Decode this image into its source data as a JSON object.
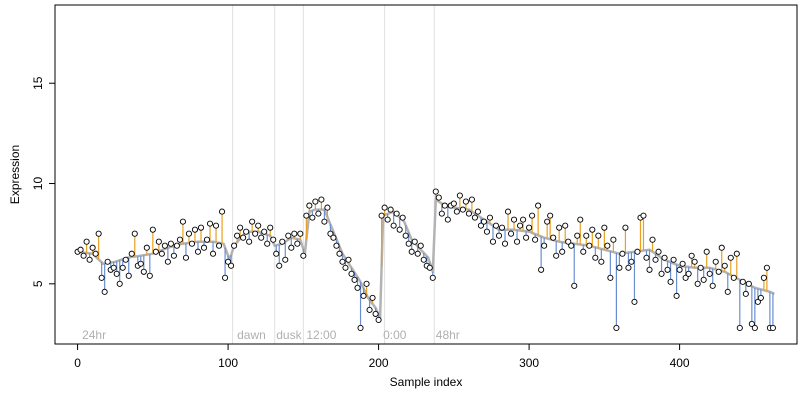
{
  "chart_data": {
    "type": "scatter",
    "xlabel": "Sample index",
    "ylabel": "Expression",
    "xlim": [
      -15,
      478
    ],
    "ylim": [
      2.0,
      18.9
    ],
    "x_ticks": [
      0,
      100,
      200,
      300,
      400
    ],
    "x_tick_labels": [
      "0",
      "100",
      "200",
      "300",
      "400"
    ],
    "y_ticks": [
      5,
      10,
      15
    ],
    "y_tick_labels": [
      "5",
      "10",
      "15"
    ],
    "markers": [
      {
        "x": 103,
        "label": ""
      },
      {
        "x": 131,
        "label": "dawn"
      },
      {
        "x": 150,
        "label": "dusk"
      },
      {
        "x": 204,
        "label": "12:00"
      },
      {
        "x": 237,
        "label": "0:00"
      }
    ],
    "segment_labels": [
      {
        "x": 3,
        "label": "24hr"
      },
      {
        "x": 106,
        "label": "dawn"
      },
      {
        "x": 132,
        "label": "dusk"
      },
      {
        "x": 152,
        "label": "12:00"
      },
      {
        "x": 203,
        "label": "0:00"
      },
      {
        "x": 238,
        "label": "48hr"
      }
    ],
    "fit_points": [
      [
        0,
        6.6
      ],
      [
        10,
        6.5
      ],
      [
        17,
        6.0
      ],
      [
        25,
        6.1
      ],
      [
        33,
        6.3
      ],
      [
        42,
        6.4
      ],
      [
        50,
        6.5
      ],
      [
        60,
        6.8
      ],
      [
        70,
        7.0
      ],
      [
        80,
        7.1
      ],
      [
        90,
        7.1
      ],
      [
        97,
        7.0
      ],
      [
        101,
        6.2
      ],
      [
        104,
        6.9
      ],
      [
        112,
        7.6
      ],
      [
        120,
        7.6
      ],
      [
        128,
        7.4
      ],
      [
        131,
        6.9
      ],
      [
        136,
        7.0
      ],
      [
        142,
        7.3
      ],
      [
        148,
        7.2
      ],
      [
        151,
        6.5
      ],
      [
        154,
        8.6
      ],
      [
        158,
        8.7
      ],
      [
        164,
        8.7
      ],
      [
        170,
        7.6
      ],
      [
        176,
        6.5
      ],
      [
        182,
        5.8
      ],
      [
        188,
        5.1
      ],
      [
        193,
        4.3
      ],
      [
        198,
        3.8
      ],
      [
        201,
        3.3
      ],
      [
        203,
        8.4
      ],
      [
        210,
        8.6
      ],
      [
        217,
        8.1
      ],
      [
        222,
        7.2
      ],
      [
        228,
        6.7
      ],
      [
        233,
        6.3
      ],
      [
        236,
        5.6
      ],
      [
        238,
        9.2
      ],
      [
        244,
        8.9
      ],
      [
        250,
        8.8
      ],
      [
        260,
        8.7
      ],
      [
        270,
        8.2
      ],
      [
        280,
        7.7
      ],
      [
        290,
        7.7
      ],
      [
        300,
        7.6
      ],
      [
        310,
        7.3
      ],
      [
        320,
        7.1
      ],
      [
        330,
        7.0
      ],
      [
        340,
        6.9
      ],
      [
        350,
        6.7
      ],
      [
        360,
        6.5
      ],
      [
        370,
        6.6
      ],
      [
        380,
        6.7
      ],
      [
        390,
        6.2
      ],
      [
        400,
        5.9
      ],
      [
        410,
        5.8
      ],
      [
        420,
        5.8
      ],
      [
        430,
        5.6
      ],
      [
        440,
        5.2
      ],
      [
        450,
        4.8
      ],
      [
        460,
        4.6
      ],
      [
        463,
        4.5
      ]
    ],
    "points": [
      [
        0,
        6.6
      ],
      [
        2,
        6.7
      ],
      [
        4,
        6.4
      ],
      [
        6,
        7.1
      ],
      [
        8,
        6.2
      ],
      [
        10,
        6.8
      ],
      [
        12,
        6.5
      ],
      [
        14,
        7.5
      ],
      [
        16,
        5.3
      ],
      [
        18,
        4.6
      ],
      [
        20,
        6.1
      ],
      [
        22,
        5.7
      ],
      [
        24,
        5.8
      ],
      [
        26,
        5.5
      ],
      [
        28,
        5.0
      ],
      [
        30,
        5.8
      ],
      [
        32,
        6.2
      ],
      [
        34,
        5.4
      ],
      [
        36,
        6.5
      ],
      [
        38,
        7.5
      ],
      [
        40,
        5.9
      ],
      [
        42,
        6.0
      ],
      [
        44,
        5.6
      ],
      [
        46,
        6.8
      ],
      [
        48,
        5.4
      ],
      [
        50,
        7.7
      ],
      [
        52,
        6.6
      ],
      [
        54,
        7.1
      ],
      [
        56,
        6.5
      ],
      [
        58,
        6.9
      ],
      [
        60,
        6.1
      ],
      [
        62,
        7.0
      ],
      [
        64,
        6.4
      ],
      [
        66,
        6.9
      ],
      [
        68,
        7.2
      ],
      [
        70,
        8.1
      ],
      [
        72,
        6.3
      ],
      [
        74,
        7.5
      ],
      [
        76,
        7.0
      ],
      [
        78,
        7.7
      ],
      [
        80,
        6.6
      ],
      [
        82,
        7.8
      ],
      [
        84,
        6.8
      ],
      [
        86,
        7.2
      ],
      [
        88,
        8.0
      ],
      [
        90,
        6.5
      ],
      [
        92,
        7.9
      ],
      [
        94,
        6.9
      ],
      [
        96,
        8.6
      ],
      [
        98,
        5.3
      ],
      [
        100,
        6.1
      ],
      [
        102,
        5.9
      ],
      [
        104,
        6.9
      ],
      [
        106,
        7.4
      ],
      [
        108,
        7.8
      ],
      [
        110,
        7.3
      ],
      [
        112,
        7.6
      ],
      [
        114,
        7.1
      ],
      [
        116,
        8.1
      ],
      [
        118,
        7.5
      ],
      [
        120,
        7.9
      ],
      [
        122,
        7.3
      ],
      [
        124,
        7.6
      ],
      [
        126,
        7.0
      ],
      [
        128,
        7.8
      ],
      [
        130,
        7.2
      ],
      [
        132,
        6.5
      ],
      [
        134,
        5.9
      ],
      [
        136,
        7.1
      ],
      [
        138,
        6.2
      ],
      [
        140,
        7.4
      ],
      [
        142,
        6.8
      ],
      [
        144,
        7.5
      ],
      [
        146,
        7.0
      ],
      [
        148,
        7.5
      ],
      [
        150,
        6.4
      ],
      [
        152,
        8.4
      ],
      [
        154,
        8.9
      ],
      [
        156,
        8.3
      ],
      [
        158,
        9.1
      ],
      [
        160,
        8.5
      ],
      [
        162,
        9.2
      ],
      [
        164,
        8.1
      ],
      [
        166,
        8.8
      ],
      [
        168,
        7.5
      ],
      [
        170,
        7.3
      ],
      [
        172,
        6.9
      ],
      [
        174,
        6.5
      ],
      [
        176,
        6.1
      ],
      [
        178,
        5.8
      ],
      [
        180,
        6.2
      ],
      [
        182,
        5.5
      ],
      [
        184,
        5.2
      ],
      [
        186,
        4.8
      ],
      [
        188,
        2.8
      ],
      [
        190,
        4.4
      ],
      [
        192,
        5.0
      ],
      [
        194,
        3.7
      ],
      [
        196,
        4.3
      ],
      [
        198,
        3.5
      ],
      [
        200,
        3.2
      ],
      [
        202,
        8.4
      ],
      [
        204,
        8.8
      ],
      [
        206,
        8.2
      ],
      [
        208,
        8.7
      ],
      [
        210,
        7.9
      ],
      [
        212,
        8.5
      ],
      [
        214,
        7.7
      ],
      [
        216,
        8.3
      ],
      [
        218,
        7.4
      ],
      [
        220,
        7.0
      ],
      [
        222,
        6.6
      ],
      [
        224,
        7.1
      ],
      [
        226,
        6.5
      ],
      [
        228,
        6.9
      ],
      [
        230,
        6.2
      ],
      [
        232,
        5.9
      ],
      [
        234,
        5.8
      ],
      [
        236,
        5.3
      ],
      [
        238,
        9.6
      ],
      [
        240,
        9.3
      ],
      [
        242,
        8.5
      ],
      [
        244,
        8.9
      ],
      [
        246,
        8.2
      ],
      [
        248,
        8.9
      ],
      [
        250,
        9.0
      ],
      [
        252,
        8.6
      ],
      [
        254,
        9.4
      ],
      [
        256,
        8.7
      ],
      [
        258,
        9.1
      ],
      [
        260,
        8.5
      ],
      [
        262,
        9.2
      ],
      [
        264,
        8.3
      ],
      [
        266,
        8.6
      ],
      [
        268,
        7.9
      ],
      [
        270,
        8.1
      ],
      [
        272,
        7.6
      ],
      [
        274,
        8.3
      ],
      [
        276,
        7.1
      ],
      [
        278,
        7.9
      ],
      [
        280,
        7.4
      ],
      [
        282,
        7.8
      ],
      [
        284,
        7.0
      ],
      [
        286,
        8.6
      ],
      [
        288,
        7.5
      ],
      [
        290,
        8.2
      ],
      [
        292,
        7.1
      ],
      [
        294,
        7.9
      ],
      [
        296,
        8.2
      ],
      [
        298,
        7.3
      ],
      [
        300,
        7.8
      ],
      [
        302,
        8.4
      ],
      [
        304,
        7.2
      ],
      [
        306,
        8.9
      ],
      [
        308,
        5.7
      ],
      [
        310,
        6.9
      ],
      [
        312,
        8.1
      ],
      [
        314,
        8.4
      ],
      [
        316,
        7.3
      ],
      [
        318,
        6.4
      ],
      [
        320,
        7.8
      ],
      [
        322,
        6.6
      ],
      [
        324,
        7.9
      ],
      [
        326,
        7.1
      ],
      [
        328,
        6.9
      ],
      [
        330,
        4.9
      ],
      [
        332,
        7.4
      ],
      [
        334,
        8.2
      ],
      [
        336,
        6.6
      ],
      [
        338,
        7.4
      ],
      [
        340,
        6.9
      ],
      [
        342,
        7.7
      ],
      [
        344,
        6.3
      ],
      [
        346,
        7.4
      ],
      [
        348,
        6.1
      ],
      [
        350,
        7.8
      ],
      [
        352,
        6.9
      ],
      [
        354,
        5.3
      ],
      [
        356,
        7.2
      ],
      [
        358,
        2.8
      ],
      [
        360,
        5.8
      ],
      [
        362,
        6.5
      ],
      [
        364,
        7.8
      ],
      [
        366,
        5.8
      ],
      [
        368,
        6.1
      ],
      [
        370,
        4.1
      ],
      [
        372,
        6.6
      ],
      [
        374,
        8.3
      ],
      [
        376,
        8.4
      ],
      [
        378,
        6.3
      ],
      [
        380,
        5.7
      ],
      [
        382,
        7.2
      ],
      [
        384,
        6.2
      ],
      [
        386,
        6.6
      ],
      [
        388,
        5.5
      ],
      [
        390,
        6.3
      ],
      [
        392,
        5.7
      ],
      [
        394,
        5.1
      ],
      [
        396,
        6.2
      ],
      [
        398,
        4.4
      ],
      [
        400,
        5.7
      ],
      [
        402,
        6.0
      ],
      [
        404,
        5.3
      ],
      [
        406,
        5.5
      ],
      [
        408,
        6.4
      ],
      [
        410,
        6.1
      ],
      [
        412,
        5.0
      ],
      [
        414,
        5.8
      ],
      [
        416,
        5.2
      ],
      [
        418,
        6.6
      ],
      [
        420,
        5.5
      ],
      [
        422,
        4.9
      ],
      [
        424,
        6.1
      ],
      [
        426,
        5.6
      ],
      [
        428,
        6.8
      ],
      [
        430,
        5.9
      ],
      [
        432,
        4.6
      ],
      [
        434,
        6.3
      ],
      [
        436,
        5.3
      ],
      [
        438,
        6.5
      ],
      [
        440,
        2.8
      ],
      [
        442,
        5.1
      ],
      [
        444,
        4.5
      ],
      [
        446,
        5.0
      ],
      [
        448,
        3.0
      ],
      [
        450,
        2.8
      ],
      [
        452,
        4.1
      ],
      [
        454,
        4.3
      ],
      [
        456,
        5.3
      ],
      [
        458,
        5.8
      ],
      [
        460,
        2.8
      ],
      [
        462,
        2.8
      ]
    ],
    "colors": {
      "fit_line": "#b3b3b3",
      "below_fit": "#6a8fd0",
      "above_fit": "#e8a020",
      "marker_line": "#e0e0e0",
      "segment_label": "#b0b0b0",
      "point_fill": "#ffffff",
      "point_stroke": "#000000"
    }
  }
}
